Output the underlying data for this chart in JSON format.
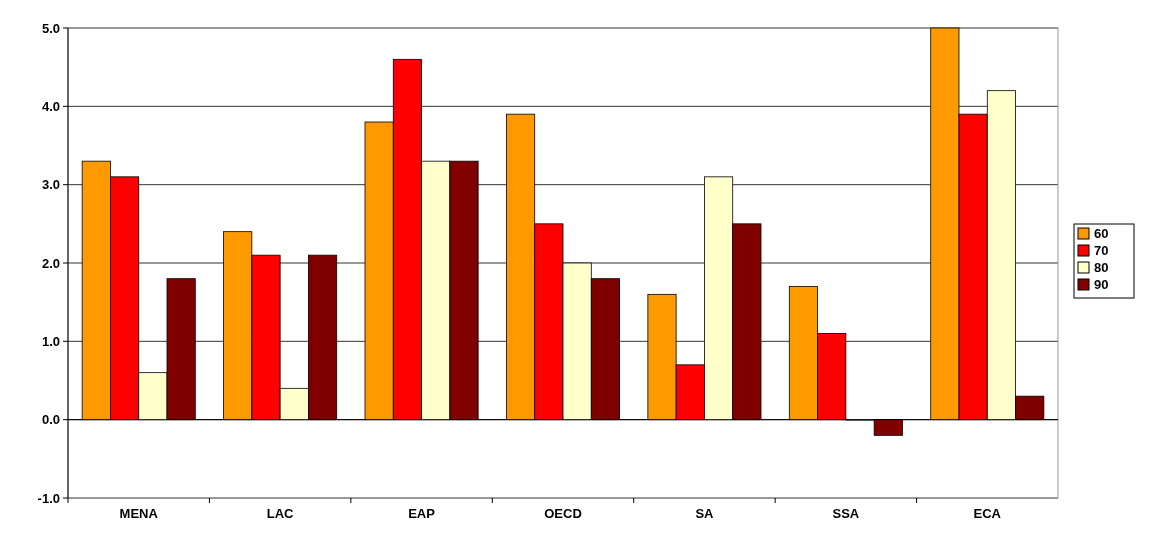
{
  "chart_data": {
    "type": "bar",
    "categories": [
      "MENA",
      "LAC",
      "EAP",
      "OECD",
      "SA",
      "SSA",
      "ECA"
    ],
    "series": [
      {
        "name": "60",
        "color": "#ff9900",
        "values": [
          3.3,
          2.4,
          3.8,
          3.9,
          1.6,
          1.7,
          5.0
        ]
      },
      {
        "name": "70",
        "color": "#ff0000",
        "values": [
          3.1,
          2.1,
          4.6,
          2.5,
          0.7,
          1.1,
          3.9
        ]
      },
      {
        "name": "80",
        "color": "#ffffcc",
        "values": [
          0.6,
          0.4,
          3.3,
          2.0,
          3.1,
          0.0,
          4.2
        ]
      },
      {
        "name": "90",
        "color": "#800000",
        "values": [
          1.8,
          2.1,
          3.3,
          1.8,
          2.5,
          -0.2,
          0.3
        ]
      }
    ],
    "ylim": [
      -1,
      5
    ],
    "yticks": [
      {
        "value": -1,
        "label": "-1.0"
      },
      {
        "value": 0,
        "label": "0.0"
      },
      {
        "value": 1,
        "label": "1.0"
      },
      {
        "value": 2,
        "label": "2.0"
      },
      {
        "value": 3,
        "label": "3.0"
      },
      {
        "value": 4,
        "label": "4.0"
      },
      {
        "value": 5,
        "label": "5.0"
      }
    ],
    "grid": "y",
    "legend": "right"
  }
}
